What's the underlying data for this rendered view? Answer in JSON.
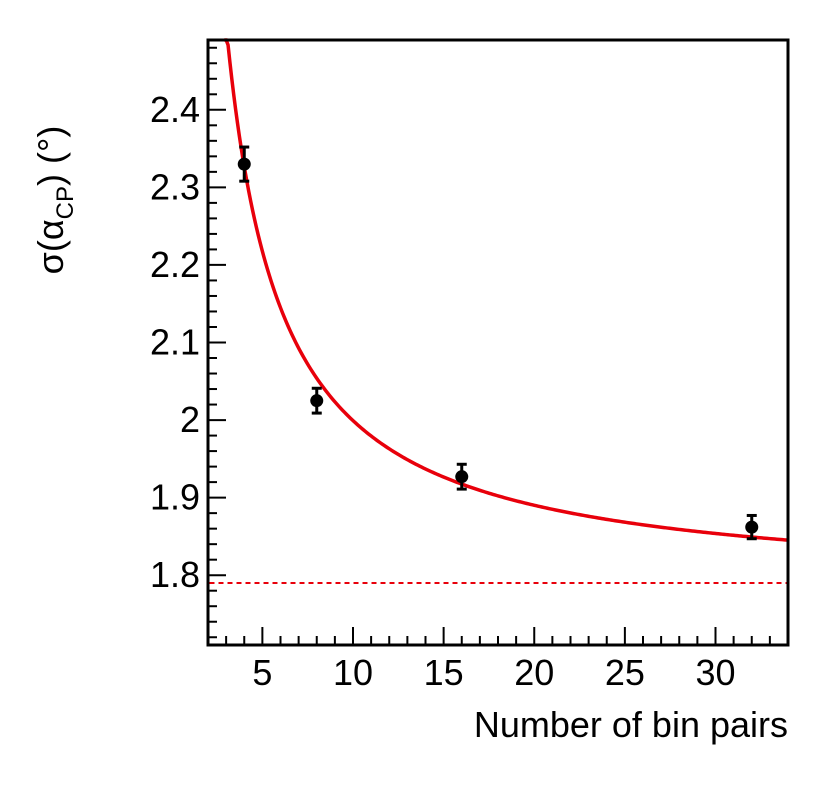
{
  "chart_data": {
    "type": "scatter",
    "xlabel": "Number of bin pairs",
    "ylabel_parts": {
      "pre": "σ(α",
      "sub": "CP",
      "post": ") (°)"
    },
    "xlim": [
      2,
      34
    ],
    "ylim": [
      1.71,
      2.49
    ],
    "x_major_ticks": [
      5,
      10,
      15,
      20,
      25,
      30
    ],
    "x_tick_labels": [
      "5",
      "10",
      "15",
      "20",
      "25",
      "30"
    ],
    "y_major_ticks": [
      1.8,
      1.9,
      2.0,
      2.1,
      2.2,
      2.3,
      2.4
    ],
    "y_tick_labels": [
      "1.8",
      "1.9",
      "2",
      "2.1",
      "2.2",
      "2.3",
      "2.4"
    ],
    "points": [
      {
        "x": 4,
        "y": 2.33,
        "err": 0.022
      },
      {
        "x": 8,
        "y": 2.025,
        "err": 0.016
      },
      {
        "x": 16,
        "y": 1.927,
        "err": 0.016
      },
      {
        "x": 32,
        "y": 1.862,
        "err": 0.015
      }
    ],
    "fit": {
      "form": "a + b/x",
      "a": 1.781,
      "b": 2.183,
      "x_start": 2.9,
      "x_end": 34,
      "color": "#e8000b"
    },
    "reference_line": {
      "y": 1.79,
      "style": "dashed",
      "color": "#e8000b"
    },
    "marker_color": "#000000",
    "grid": false
  }
}
